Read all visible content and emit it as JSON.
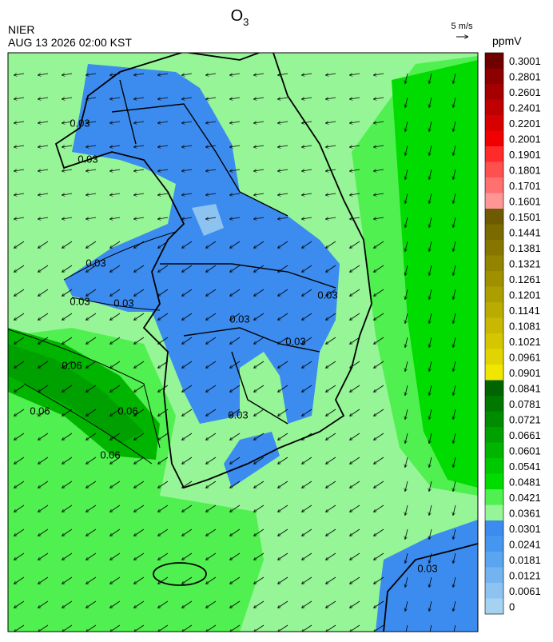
{
  "header": {
    "title": {
      "main": "O",
      "subscript": "3"
    },
    "agency": "NIER",
    "timestamp": "AUG 13 2026 02:00 KST",
    "wind_reference": "5 m/s"
  },
  "colorbar": {
    "unit": "ppmV",
    "levels": [
      {
        "label": "0.3001",
        "color": "#6e0000"
      },
      {
        "label": "0.2801",
        "color": "#8c0000"
      },
      {
        "label": "0.2601",
        "color": "#a50000"
      },
      {
        "label": "0.2401",
        "color": "#be0000"
      },
      {
        "label": "0.2201",
        "color": "#d70000"
      },
      {
        "label": "0.2001",
        "color": "#f00000"
      },
      {
        "label": "0.1901",
        "color": "#ff2a2a"
      },
      {
        "label": "0.1801",
        "color": "#ff5050"
      },
      {
        "label": "0.1701",
        "color": "#ff7070"
      },
      {
        "label": "0.1601",
        "color": "#ff9696"
      },
      {
        "label": "0.1501",
        "color": "#6e5a00"
      },
      {
        "label": "0.1441",
        "color": "#7a6a00"
      },
      {
        "label": "0.1381",
        "color": "#867600"
      },
      {
        "label": "0.1321",
        "color": "#938400"
      },
      {
        "label": "0.1261",
        "color": "#a09000"
      },
      {
        "label": "0.1201",
        "color": "#ad9e00"
      },
      {
        "label": "0.1141",
        "color": "#baab00"
      },
      {
        "label": "0.1081",
        "color": "#c8b800"
      },
      {
        "label": "0.1021",
        "color": "#d5c600"
      },
      {
        "label": "0.0961",
        "color": "#e2d400"
      },
      {
        "label": "0.0901",
        "color": "#f0e600"
      },
      {
        "label": "0.0841",
        "color": "#006400"
      },
      {
        "label": "0.0781",
        "color": "#007800"
      },
      {
        "label": "0.0721",
        "color": "#008c00"
      },
      {
        "label": "0.0661",
        "color": "#00a000"
      },
      {
        "label": "0.0601",
        "color": "#00b400"
      },
      {
        "label": "0.0541",
        "color": "#00c800"
      },
      {
        "label": "0.0481",
        "color": "#00dc00"
      },
      {
        "label": "0.0421",
        "color": "#50f050"
      },
      {
        "label": "0.0361",
        "color": "#96f596"
      },
      {
        "label": "0.0301",
        "color": "#3c8cf0"
      },
      {
        "label": "0.0241",
        "color": "#4696f0"
      },
      {
        "label": "0.0181",
        "color": "#5aa5f0"
      },
      {
        "label": "0.0121",
        "color": "#73b4f0"
      },
      {
        "label": "0.0061",
        "color": "#8cc3f0"
      },
      {
        "label": "0",
        "color": "#a5d2f0"
      }
    ]
  },
  "map": {
    "contour_labels": [
      "0.03",
      "0.03",
      "0.03",
      "0.03",
      "0.03",
      "0.03",
      "0.03",
      "0.03",
      "0.03",
      "0.03",
      "0.06",
      "0.06",
      "0.06",
      "0.06"
    ]
  }
}
